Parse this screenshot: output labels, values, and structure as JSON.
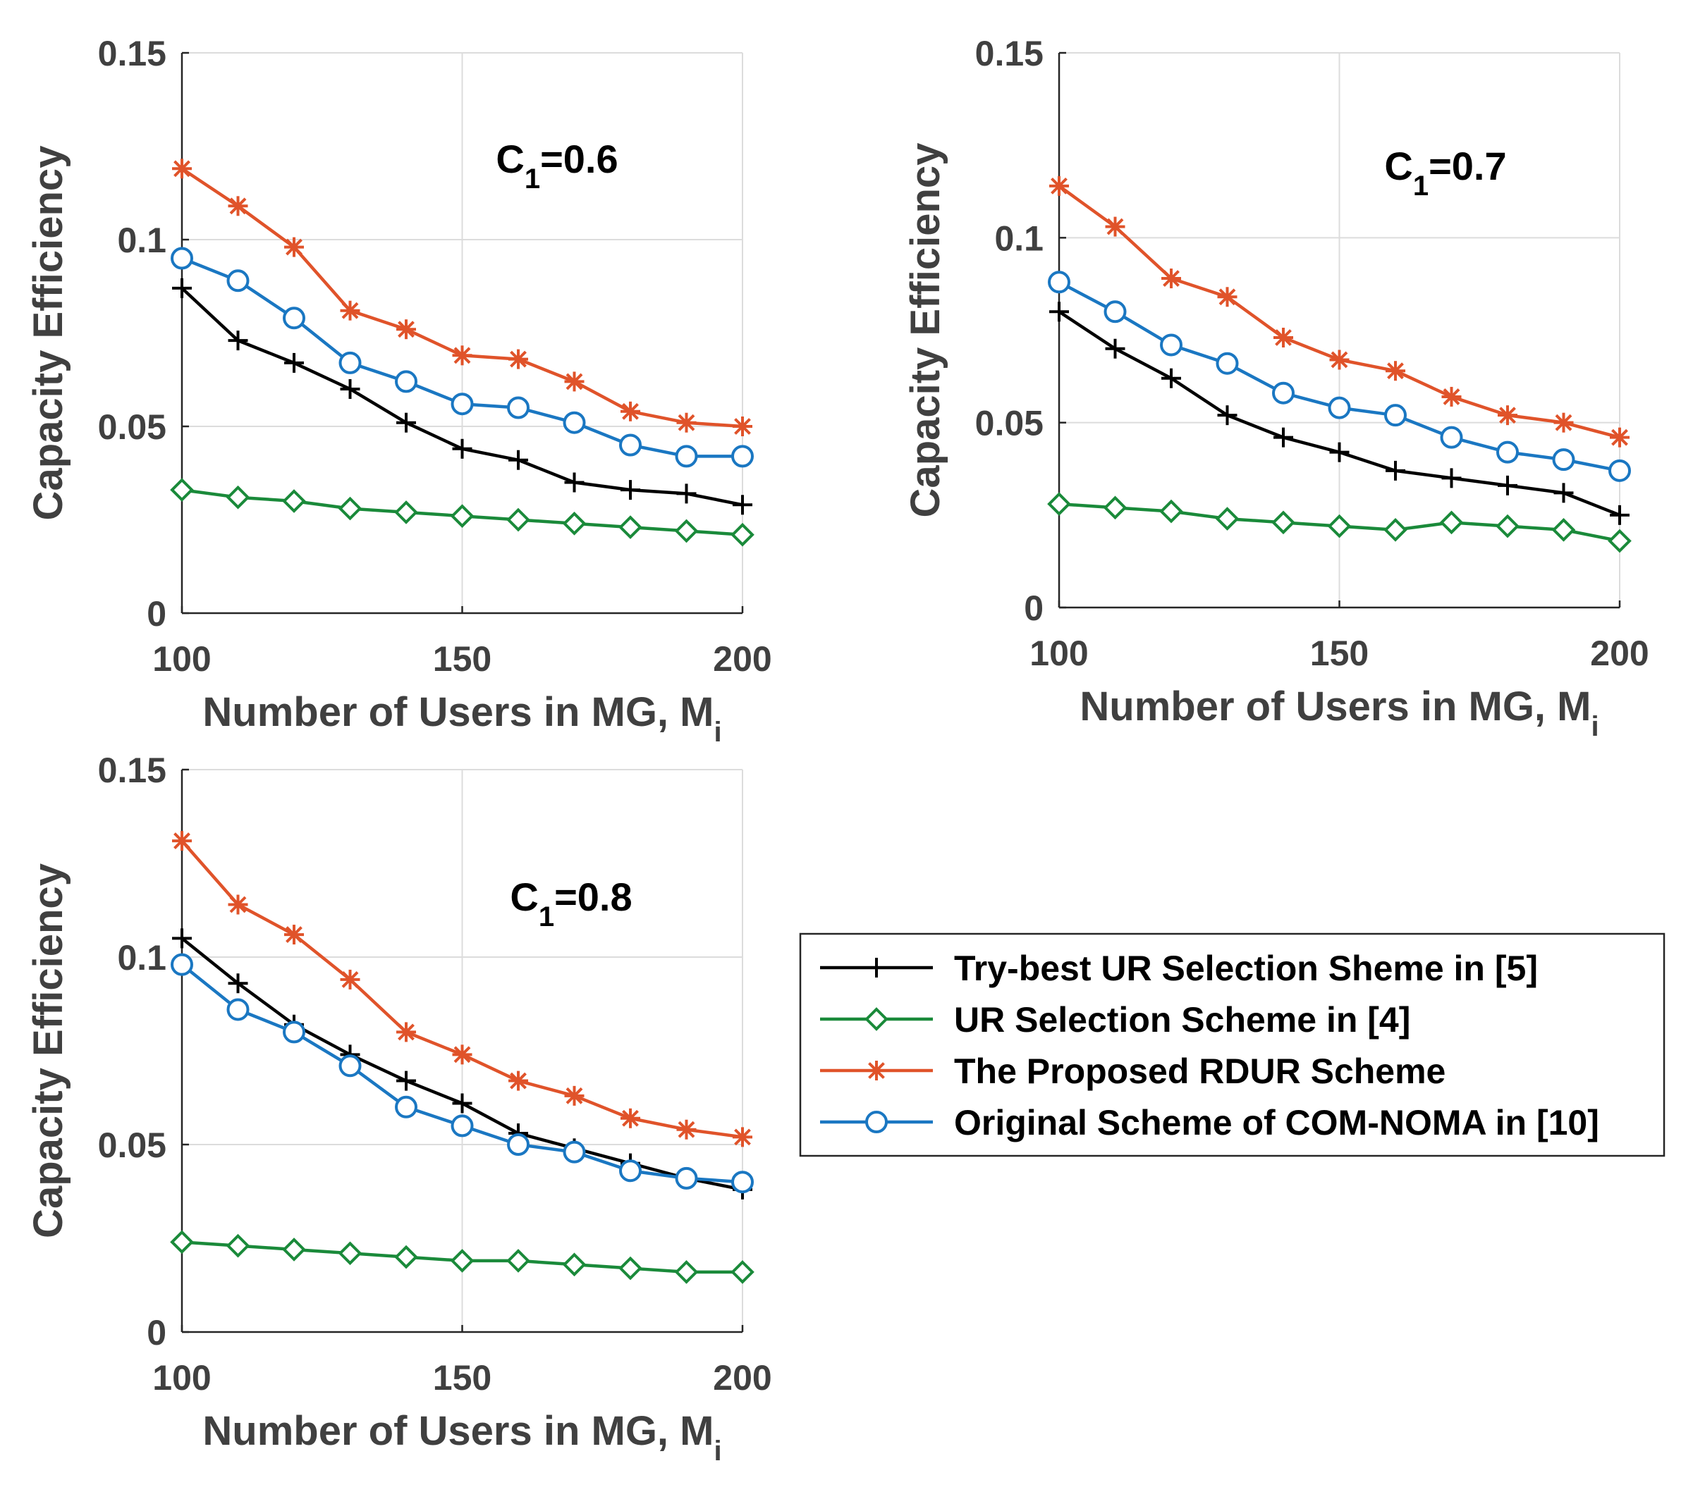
{
  "colors": {
    "try_best": "#000000",
    "ur_selection": "#1a8a3a",
    "proposed": "#e0532a",
    "original": "#1a77c2"
  },
  "legend": [
    {
      "name": "Try-best UR Selection Sheme in [5]",
      "marker": "plus",
      "color": "#000000"
    },
    {
      "name": "UR Selection Scheme in [4]",
      "marker": "diamond",
      "color": "#1a8a3a"
    },
    {
      "name": "The Proposed RDUR Scheme",
      "marker": "star",
      "color": "#e0532a"
    },
    {
      "name": "Original Scheme of COM-NOMA in [10]",
      "marker": "circle",
      "color": "#1a77c2"
    }
  ],
  "chart_data": [
    {
      "type": "line",
      "annotation": {
        "base": "C",
        "sub": "1",
        "rest": "=0.6"
      },
      "xlabel": {
        "main": "Number of Users in MG, M",
        "sub": "i"
      },
      "ylabel": "Capacity Efficiency",
      "xlim": [
        100,
        200
      ],
      "ylim": [
        0,
        0.15
      ],
      "xticks": [
        100,
        150,
        200
      ],
      "xtick_labels": [
        "100",
        "150",
        "200"
      ],
      "yticks": [
        0,
        0.05,
        0.1,
        0.15
      ],
      "ytick_labels": [
        "0",
        "0.05",
        "0.1",
        "0.15"
      ],
      "grid": true,
      "x": [
        100,
        110,
        120,
        130,
        140,
        150,
        160,
        170,
        180,
        190,
        200
      ],
      "series": [
        {
          "name": "Try-best UR Selection Sheme in [5]",
          "values": [
            0.087,
            0.073,
            0.067,
            0.06,
            0.051,
            0.044,
            0.041,
            0.035,
            0.033,
            0.032,
            0.029
          ]
        },
        {
          "name": "UR Selection Scheme in [4]",
          "values": [
            0.033,
            0.031,
            0.03,
            0.028,
            0.027,
            0.026,
            0.025,
            0.024,
            0.023,
            0.022,
            0.021
          ]
        },
        {
          "name": "The Proposed RDUR Scheme",
          "values": [
            0.119,
            0.109,
            0.098,
            0.081,
            0.076,
            0.069,
            0.068,
            0.062,
            0.054,
            0.051,
            0.05
          ]
        },
        {
          "name": "Original Scheme of COM-NOMA in [10]",
          "values": [
            0.095,
            0.089,
            0.079,
            0.067,
            0.062,
            0.056,
            0.055,
            0.051,
            0.045,
            0.042,
            0.042
          ]
        }
      ]
    },
    {
      "type": "line",
      "annotation": {
        "base": "C",
        "sub": "1",
        "rest": "=0.7"
      },
      "xlabel": {
        "main": "Number of Users in MG, M",
        "sub": "i"
      },
      "ylabel": "Capacity Efficiency",
      "xlim": [
        100,
        200
      ],
      "ylim": [
        0,
        0.15
      ],
      "xticks": [
        100,
        150,
        200
      ],
      "xtick_labels": [
        "100",
        "150",
        "200"
      ],
      "yticks": [
        0,
        0.05,
        0.1,
        0.15
      ],
      "ytick_labels": [
        "0",
        "0.05",
        "0.1",
        "0.15"
      ],
      "grid": true,
      "x": [
        100,
        110,
        120,
        130,
        140,
        150,
        160,
        170,
        180,
        190,
        200
      ],
      "series": [
        {
          "name": "Try-best UR Selection Sheme in [5]",
          "values": [
            0.08,
            0.07,
            0.062,
            0.052,
            0.046,
            0.042,
            0.037,
            0.035,
            0.033,
            0.031,
            0.025
          ]
        },
        {
          "name": "UR Selection Scheme in [4]",
          "values": [
            0.028,
            0.027,
            0.026,
            0.024,
            0.023,
            0.022,
            0.021,
            0.023,
            0.022,
            0.021,
            0.018
          ]
        },
        {
          "name": "The Proposed RDUR Scheme",
          "values": [
            0.114,
            0.103,
            0.089,
            0.084,
            0.073,
            0.067,
            0.064,
            0.057,
            0.052,
            0.05,
            0.046
          ]
        },
        {
          "name": "Original Scheme of COM-NOMA in [10]",
          "values": [
            0.088,
            0.08,
            0.071,
            0.066,
            0.058,
            0.054,
            0.052,
            0.046,
            0.042,
            0.04,
            0.037
          ]
        }
      ]
    },
    {
      "type": "line",
      "annotation": {
        "base": "C",
        "sub": "1",
        "rest": "=0.8"
      },
      "xlabel": {
        "main": "Number of Users in MG, M",
        "sub": "i"
      },
      "ylabel": "Capacity Efficiency",
      "xlim": [
        100,
        200
      ],
      "ylim": [
        0,
        0.15
      ],
      "xticks": [
        100,
        150,
        200
      ],
      "xtick_labels": [
        "100",
        "150",
        "200"
      ],
      "yticks": [
        0,
        0.05,
        0.1,
        0.15
      ],
      "ytick_labels": [
        "0",
        "0.05",
        "0.1",
        "0.15"
      ],
      "grid": true,
      "x": [
        100,
        110,
        120,
        130,
        140,
        150,
        160,
        170,
        180,
        190,
        200
      ],
      "series": [
        {
          "name": "Try-best UR Selection Sheme in [5]",
          "values": [
            0.105,
            0.093,
            0.082,
            0.074,
            0.067,
            0.061,
            0.053,
            0.049,
            0.045,
            0.041,
            0.038
          ]
        },
        {
          "name": "UR Selection Scheme in [4]",
          "values": [
            0.024,
            0.023,
            0.022,
            0.021,
            0.02,
            0.019,
            0.019,
            0.018,
            0.017,
            0.016,
            0.016
          ]
        },
        {
          "name": "The Proposed RDUR Scheme",
          "values": [
            0.131,
            0.114,
            0.106,
            0.094,
            0.08,
            0.074,
            0.067,
            0.063,
            0.057,
            0.054,
            0.052
          ]
        },
        {
          "name": "Original Scheme of COM-NOMA in [10]",
          "values": [
            0.098,
            0.086,
            0.08,
            0.071,
            0.06,
            0.055,
            0.05,
            0.048,
            0.043,
            0.041,
            0.04
          ]
        }
      ]
    }
  ]
}
